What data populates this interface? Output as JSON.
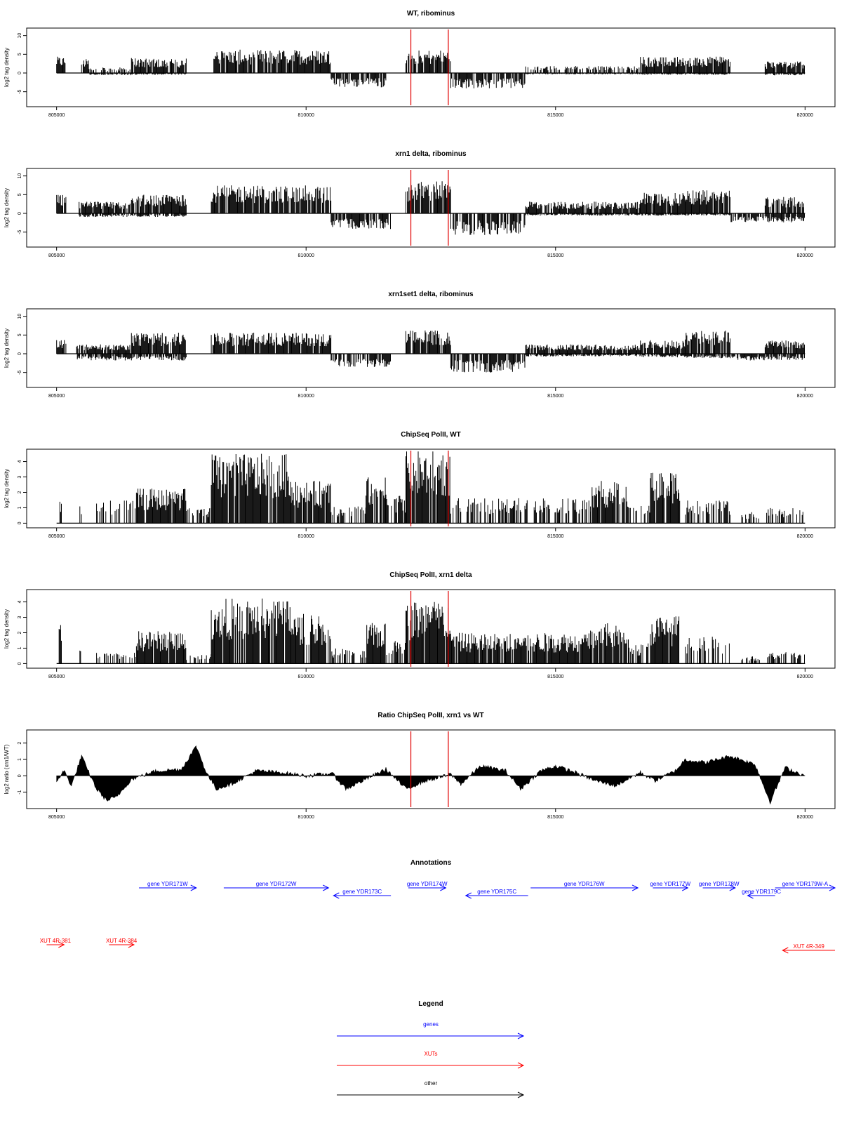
{
  "panels": [
    {
      "title": "WT, ribominus",
      "ylabel": "log2 tag density",
      "type": "bar",
      "yticks": [
        -5,
        0,
        5,
        10
      ],
      "ylim": [
        -9,
        12
      ],
      "shape": [
        {
          "x": [
            805000,
            805180
          ],
          "pos": 3.5,
          "neg": 0
        },
        {
          "x": [
            805500,
            805650
          ],
          "pos": 3,
          "neg": 0
        },
        {
          "x": [
            805650,
            806500
          ],
          "pos": 1.2,
          "neg": -0.5
        },
        {
          "x": [
            806500,
            807600
          ],
          "pos": 3.2,
          "neg": -0.4
        },
        {
          "x": [
            808150,
            810500
          ],
          "pos": 5,
          "neg": 0
        },
        {
          "x": [
            810500,
            811600
          ],
          "pos": 0,
          "neg": -3.2
        },
        {
          "x": [
            812000,
            812900
          ],
          "pos": 5,
          "neg": 0
        },
        {
          "x": [
            812900,
            814400
          ],
          "pos": 0,
          "neg": -3.5
        },
        {
          "x": [
            814400,
            816700
          ],
          "pos": 1.5,
          "neg": -0.3
        },
        {
          "x": [
            816700,
            817600
          ],
          "pos": 3.5,
          "neg": -0.4
        },
        {
          "x": [
            817600,
            818500
          ],
          "pos": 3.5,
          "neg": -0.4
        },
        {
          "x": [
            819200,
            820000
          ],
          "pos": 2.5,
          "neg": -0.5
        }
      ]
    },
    {
      "title": "xrn1 delta, ribominus",
      "ylabel": "log2 tag density",
      "type": "bar",
      "yticks": [
        -5,
        0,
        5,
        10
      ],
      "ylim": [
        -9,
        12
      ],
      "shape": [
        {
          "x": [
            805000,
            805200
          ],
          "pos": 4,
          "neg": 0
        },
        {
          "x": [
            805450,
            806500
          ],
          "pos": 2.5,
          "neg": -0.8
        },
        {
          "x": [
            806500,
            807600
          ],
          "pos": 4,
          "neg": -0.8
        },
        {
          "x": [
            808100,
            810500
          ],
          "pos": 6,
          "neg": 0
        },
        {
          "x": [
            810500,
            811700
          ],
          "pos": 0,
          "neg": -3.5
        },
        {
          "x": [
            812000,
            812900
          ],
          "pos": 7,
          "neg": 0
        },
        {
          "x": [
            812900,
            814400
          ],
          "pos": 0,
          "neg": -4.8
        },
        {
          "x": [
            814400,
            816700
          ],
          "pos": 2.5,
          "neg": -0.5
        },
        {
          "x": [
            816700,
            817600
          ],
          "pos": 4.5,
          "neg": -0.5
        },
        {
          "x": [
            817600,
            818500
          ],
          "pos": 5,
          "neg": -0.5
        },
        {
          "x": [
            818500,
            819200
          ],
          "pos": 0,
          "neg": -2
        },
        {
          "x": [
            819200,
            820000
          ],
          "pos": 3.5,
          "neg": -2
        }
      ]
    },
    {
      "title": "xrn1set1 delta, ribominus",
      "ylabel": "log2 tag density",
      "type": "bar",
      "yticks": [
        -5,
        0,
        5,
        10
      ],
      "ylim": [
        -9,
        12
      ],
      "shape": [
        {
          "x": [
            805000,
            805200
          ],
          "pos": 3,
          "neg": 0
        },
        {
          "x": [
            805400,
            806500
          ],
          "pos": 2,
          "neg": -1.5
        },
        {
          "x": [
            806500,
            807600
          ],
          "pos": 4.5,
          "neg": -1.5
        },
        {
          "x": [
            808100,
            810500
          ],
          "pos": 4.5,
          "neg": 0
        },
        {
          "x": [
            810500,
            811700
          ],
          "pos": 0,
          "neg": -3
        },
        {
          "x": [
            812000,
            812900
          ],
          "pos": 5,
          "neg": 0
        },
        {
          "x": [
            812900,
            814400
          ],
          "pos": 0,
          "neg": -4.2
        },
        {
          "x": [
            814400,
            816700
          ],
          "pos": 2,
          "neg": -0.6
        },
        {
          "x": [
            816700,
            817600
          ],
          "pos": 3,
          "neg": -0.8
        },
        {
          "x": [
            817600,
            818500
          ],
          "pos": 5,
          "neg": -1
        },
        {
          "x": [
            818500,
            819200
          ],
          "pos": 0,
          "neg": -1.5
        },
        {
          "x": [
            819200,
            820000
          ],
          "pos": 3,
          "neg": -1.5
        }
      ]
    },
    {
      "title": "ChipSeq PolII, WT",
      "ylabel": "log2 tag density",
      "type": "bar",
      "yticks": [
        0,
        1,
        2,
        3,
        4
      ],
      "ylim": [
        -0.3,
        4.8
      ],
      "shape": [
        {
          "x": [
            805050,
            805100
          ],
          "pos": 1.6,
          "neg": 0
        },
        {
          "x": [
            805450,
            805500
          ],
          "pos": 1,
          "neg": 0
        },
        {
          "x": [
            805800,
            806600
          ],
          "pos": 1.2,
          "neg": 0
        },
        {
          "x": [
            806600,
            807600
          ],
          "pos": 1.8,
          "neg": 0
        },
        {
          "x": [
            807600,
            808100
          ],
          "pos": 0.8,
          "neg": 0
        },
        {
          "x": [
            808100,
            809700
          ],
          "pos": 3.6,
          "neg": 0
        },
        {
          "x": [
            809700,
            810500
          ],
          "pos": 2.2,
          "neg": 0
        },
        {
          "x": [
            810500,
            811200
          ],
          "pos": 0.9,
          "neg": 0
        },
        {
          "x": [
            811200,
            811600
          ],
          "pos": 2.4,
          "neg": 0
        },
        {
          "x": [
            811600,
            812000
          ],
          "pos": 1.5,
          "neg": 0
        },
        {
          "x": [
            812000,
            812900
          ],
          "pos": 3.8,
          "neg": 0
        },
        {
          "x": [
            812900,
            815700
          ],
          "pos": 1.3,
          "neg": 0
        },
        {
          "x": [
            815700,
            816500
          ],
          "pos": 2.2,
          "neg": 0
        },
        {
          "x": [
            816500,
            816900
          ],
          "pos": 1.1,
          "neg": 0
        },
        {
          "x": [
            816900,
            817500
          ],
          "pos": 2.8,
          "neg": 0
        },
        {
          "x": [
            817600,
            818500
          ],
          "pos": 1.2,
          "neg": 0
        },
        {
          "x": [
            818700,
            819100
          ],
          "pos": 0.6,
          "neg": 0
        },
        {
          "x": [
            819200,
            820000
          ],
          "pos": 0.8,
          "neg": 0
        }
      ]
    },
    {
      "title": "ChipSeq PolII, xrn1 delta",
      "ylabel": "log2 tag density",
      "type": "bar",
      "yticks": [
        0,
        1,
        2,
        3,
        4
      ],
      "ylim": [
        -0.3,
        4.8
      ],
      "shape": [
        {
          "x": [
            805050,
            805100
          ],
          "pos": 2,
          "neg": 0
        },
        {
          "x": [
            805450,
            805500
          ],
          "pos": 0.8,
          "neg": 0
        },
        {
          "x": [
            805800,
            806600
          ],
          "pos": 0.6,
          "neg": 0
        },
        {
          "x": [
            806600,
            807600
          ],
          "pos": 1.7,
          "neg": 0
        },
        {
          "x": [
            807600,
            808100
          ],
          "pos": 0.5,
          "neg": 0
        },
        {
          "x": [
            808100,
            809700
          ],
          "pos": 3.4,
          "neg": 0
        },
        {
          "x": [
            809700,
            810500
          ],
          "pos": 2.6,
          "neg": 0
        },
        {
          "x": [
            810500,
            811200
          ],
          "pos": 0.8,
          "neg": 0
        },
        {
          "x": [
            811200,
            811600
          ],
          "pos": 2.1,
          "neg": 0
        },
        {
          "x": [
            811600,
            812000
          ],
          "pos": 1.2,
          "neg": 0
        },
        {
          "x": [
            812000,
            812900
          ],
          "pos": 3.3,
          "neg": 0
        },
        {
          "x": [
            812900,
            815700
          ],
          "pos": 1.6,
          "neg": 0
        },
        {
          "x": [
            815700,
            816500
          ],
          "pos": 2.1,
          "neg": 0
        },
        {
          "x": [
            816500,
            816900
          ],
          "pos": 1.1,
          "neg": 0
        },
        {
          "x": [
            816900,
            817500
          ],
          "pos": 2.5,
          "neg": 0
        },
        {
          "x": [
            817600,
            818500
          ],
          "pos": 1.4,
          "neg": 0
        },
        {
          "x": [
            818700,
            819100
          ],
          "pos": 0.4,
          "neg": 0
        },
        {
          "x": [
            819200,
            820000
          ],
          "pos": 0.6,
          "neg": 0
        }
      ]
    },
    {
      "title": "Ratio ChipSeq PolII, xrn1 vs WT",
      "ylabel": "log2 ratio (xrn1/WT)",
      "type": "area",
      "yticks": [
        -1,
        0,
        1,
        2
      ],
      "ylim": [
        -2,
        2.8
      ],
      "profile": {
        "x": [
          805000,
          805150,
          805300,
          805500,
          805600,
          805800,
          806000,
          806200,
          806500,
          807000,
          807500,
          807800,
          808000,
          808200,
          808500,
          809000,
          809500,
          810000,
          810400,
          810500,
          810800,
          811200,
          811600,
          812000,
          812400,
          812800,
          812900,
          813100,
          813500,
          814000,
          814300,
          814700,
          815000,
          815400,
          815800,
          816200,
          816700,
          817000,
          817400,
          817600,
          818000,
          818500,
          819000,
          819300,
          819600,
          820000
        ],
        "y": [
          -0.3,
          0.3,
          -0.6,
          1.2,
          0.5,
          -0.8,
          -1.5,
          -1.3,
          -0.2,
          0.3,
          0.4,
          1.8,
          0.2,
          -0.8,
          -0.5,
          0.3,
          0.2,
          0.0,
          0.1,
          0.2,
          -0.8,
          -0.2,
          0.4,
          -0.8,
          -0.3,
          0.0,
          0.1,
          -0.5,
          0.6,
          0.3,
          -0.8,
          0.3,
          0.6,
          0.2,
          -0.3,
          -0.6,
          0.2,
          -0.3,
          0.3,
          1.0,
          0.8,
          1.2,
          0.7,
          -1.6,
          0.5,
          0.0
        ]
      }
    }
  ],
  "xaxis": {
    "ticks": [
      805000,
      810000,
      815000,
      820000
    ],
    "tick_labels": [
      "805000",
      "810000",
      "815000",
      "820000"
    ],
    "range": [
      804400,
      820600
    ]
  },
  "region_markers": {
    "x": [
      812100,
      812850
    ],
    "color": "#e00000"
  },
  "annotations": {
    "title": "Annotations",
    "genes": [
      {
        "label": "gene YDR171W",
        "start": 806650,
        "end": 807800,
        "strand": "+",
        "row": 0
      },
      {
        "label": "gene YDR172W",
        "start": 808350,
        "end": 810450,
        "strand": "+",
        "row": 0
      },
      {
        "label": "gene YDR173C",
        "start": 810550,
        "end": 811700,
        "strand": "-",
        "row": 1
      },
      {
        "label": "gene YDR174W",
        "start": 812050,
        "end": 812800,
        "strand": "+",
        "row": 0
      },
      {
        "label": "gene YDR175C",
        "start": 813200,
        "end": 814450,
        "strand": "-",
        "row": 1
      },
      {
        "label": "gene YDR176W",
        "start": 814500,
        "end": 816650,
        "strand": "+",
        "row": 0
      },
      {
        "label": "gene YDR177W",
        "start": 816950,
        "end": 817650,
        "strand": "+",
        "row": 0
      },
      {
        "label": "gene YDR178W",
        "start": 817950,
        "end": 818600,
        "strand": "+",
        "row": 0
      },
      {
        "label": "gene YDR179C",
        "start": 818850,
        "end": 819400,
        "strand": "-",
        "row": 1
      },
      {
        "label": "gene YDR179W-A",
        "start": 819400,
        "end": 820600,
        "strand": "+",
        "row": 0
      }
    ],
    "xuts": [
      {
        "label": "XUT 4R-381",
        "start": 804800,
        "end": 805150,
        "strand": "+",
        "row": 0
      },
      {
        "label": "XUT 4R-384",
        "start": 806050,
        "end": 806550,
        "strand": "+",
        "row": 0
      },
      {
        "label": "XUT 4R-349",
        "start": 819550,
        "end": 820600,
        "strand": "-",
        "row": 1
      }
    ]
  },
  "legend": {
    "title": "Legend",
    "items": [
      {
        "label": "genes",
        "color": "#0000ff"
      },
      {
        "label": "XUTs",
        "color": "#ff0000"
      },
      {
        "label": "other",
        "color": "#000000"
      }
    ]
  },
  "colors": {
    "gene": "#0000ff",
    "xut": "#ff0000",
    "data": "#000000",
    "marker": "#e00000"
  }
}
